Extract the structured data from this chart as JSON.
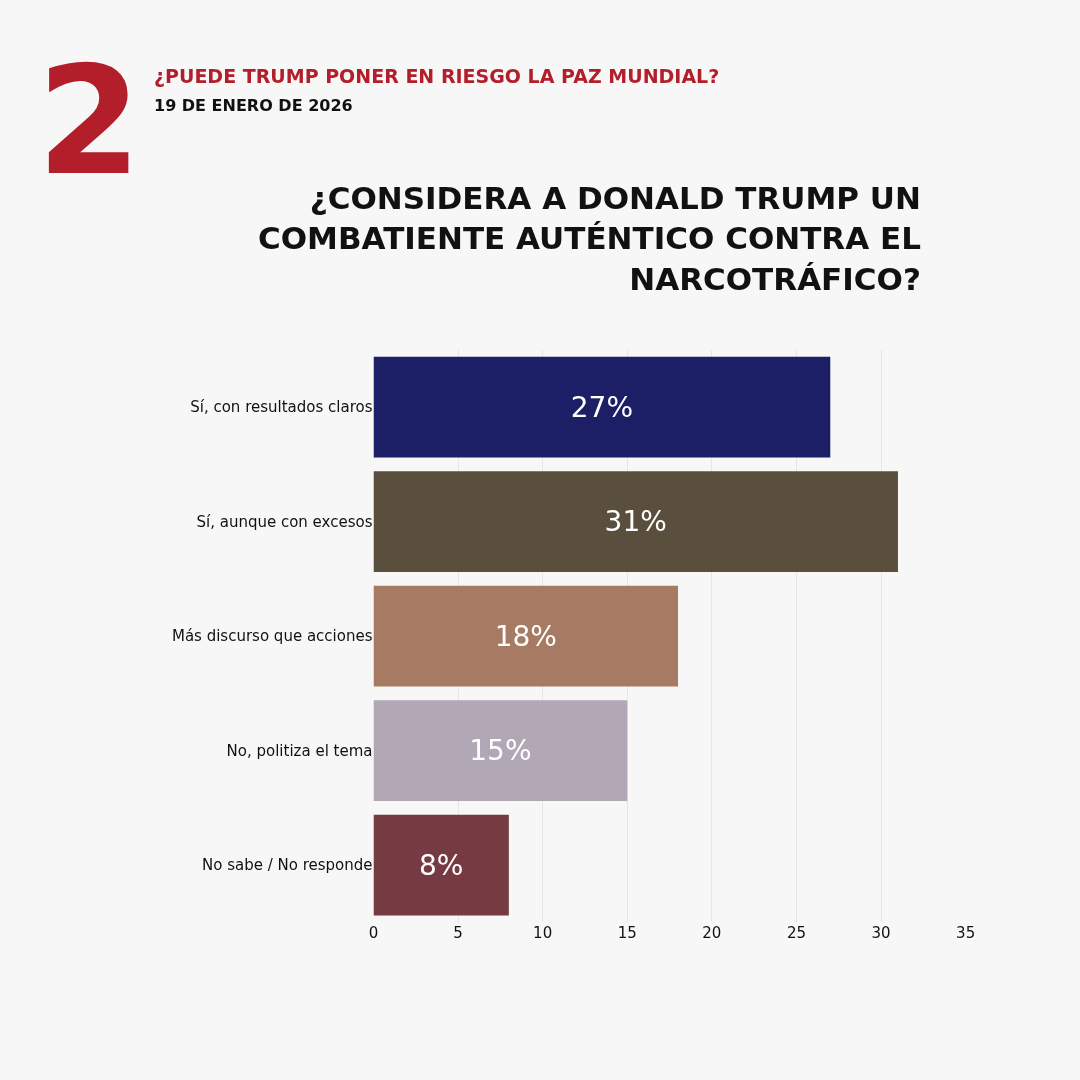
{
  "chart_data": {
    "type": "bar",
    "orientation": "horizontal",
    "title": "¿CONSIDERA A DONALD TRUMP UN COMBATIENTE AUTÉNTICO CONTRA EL NARCOTRÁFICO?",
    "subtitle": "¿PUEDE TRUMP PONER EN RIESGO LA PAZ MUNDIAL?",
    "annotations": [
      "2",
      "19 DE ENERO DE 2026"
    ],
    "categories": [
      "Sí, con resultados claros",
      "Sí, aunque con excesos",
      "Más discurso que acciones",
      "No, politiza el tema",
      "No sabe / No responde"
    ],
    "values": [
      27,
      31,
      18,
      15,
      8
    ],
    "colors": [
      "#1c1f66",
      "#5a4f3d",
      "#a67a63",
      "#b2a7b5",
      "#763a43"
    ],
    "value_labels": [
      "27%",
      "31%",
      "18%",
      "15%",
      "8%"
    ],
    "xlim": [
      0,
      35
    ],
    "xticks": [
      0,
      5,
      10,
      15,
      20,
      25,
      30,
      35
    ],
    "grid": "x",
    "legend": false
  }
}
